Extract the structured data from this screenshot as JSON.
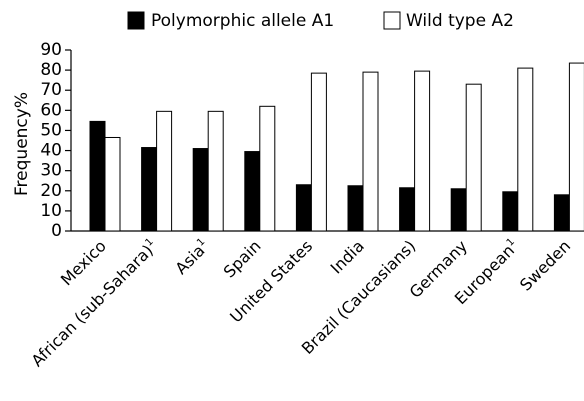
{
  "chart_data": {
    "type": "bar",
    "categories": [
      "Mexico",
      "African (sub-Sahara)",
      "Asia",
      "Spain",
      "United States",
      "India",
      "Brazil (Caucasians)",
      "Germany",
      "European",
      "Sweden"
    ],
    "category_superscripts": [
      "",
      "1",
      "1",
      "",
      "",
      "",
      "",
      "",
      "1",
      ""
    ],
    "series": [
      {
        "name": "Polymorphic allele A1",
        "values": [
          54.5,
          41.5,
          41,
          39.5,
          23,
          22.5,
          21.5,
          21,
          19.5,
          18
        ],
        "color": "#000000"
      },
      {
        "name": "Wild type A2",
        "values": [
          46.5,
          59.5,
          59.5,
          62,
          78.5,
          79,
          79.5,
          73,
          81,
          83.5
        ],
        "color": "#ffffff"
      }
    ],
    "xlabel": "",
    "ylabel": "Frequency%",
    "ylim": [
      0,
      90
    ],
    "yticks": [
      0,
      10,
      20,
      30,
      40,
      50,
      60,
      70,
      80,
      90
    ],
    "grid": false,
    "legend_position": "top"
  }
}
